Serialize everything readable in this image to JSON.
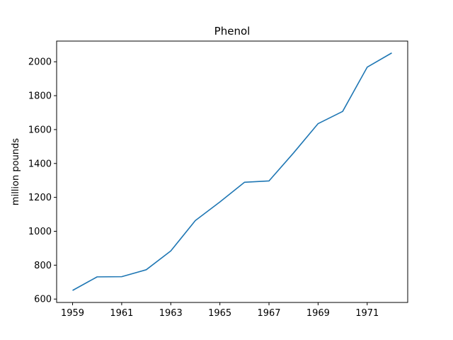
{
  "chart_data": {
    "type": "line",
    "title": "Phenol",
    "xlabel": "",
    "ylabel": "million pounds",
    "x": [
      1959,
      1960,
      1961,
      1962,
      1963,
      1964,
      1965,
      1966,
      1967,
      1968,
      1969,
      1970,
      1971,
      1972
    ],
    "series": [
      {
        "values": [
          651,
          731,
          732,
          773,
          884,
          1063,
          1173,
          1289,
          1297,
          1462,
          1635,
          1707,
          1968,
          2052
        ],
        "color": "#1f77b4"
      }
    ],
    "xticks": [
      "1959",
      "1961",
      "1963",
      "1965",
      "1967",
      "1969",
      "1971"
    ],
    "yticks": [
      "600",
      "800",
      "1000",
      "1200",
      "1400",
      "1600",
      "1800",
      "2000"
    ],
    "xlim": [
      1958.35,
      1972.65
    ],
    "ylim": [
      580,
      2122
    ],
    "grid": false
  }
}
